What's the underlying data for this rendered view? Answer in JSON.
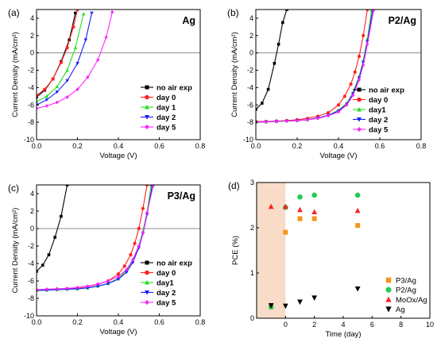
{
  "figure": {
    "panels_note": "",
    "colors": {
      "black": "#000000",
      "red": "#ff2020",
      "green": "#22dd22",
      "blue": "#1a1aff",
      "magenta": "#ff22ff",
      "orange": "#f7941d",
      "teal_green": "#22cc55",
      "shade": "#f8dcc8",
      "ref_line": "#8c8c8c"
    }
  },
  "chart_data": [
    {
      "type": "line",
      "panel_label": "(a)",
      "title": "Ag",
      "xlabel": "Voltage (V)",
      "ylabel": "Current Density (mA/cm²)",
      "xlim": [
        0.0,
        0.8
      ],
      "ylim": [
        -10,
        5
      ],
      "xticks": [
        "0.0",
        "0.2",
        "0.4",
        "0.6",
        "0.8"
      ],
      "yticks": [
        "-10",
        "-8",
        "-6",
        "-4",
        "-2",
        "0",
        "2",
        "4"
      ],
      "xticks_values": [
        0.0,
        0.2,
        0.4,
        0.6,
        0.8
      ],
      "yticks_values": [
        -10,
        -8,
        -6,
        -4,
        -2,
        0,
        2,
        4
      ],
      "reference_line_y": 0,
      "legend_position": "bottom-right",
      "series": [
        {
          "name": "no air exp",
          "color": "#000000",
          "marker": "square",
          "x": [
            0.0,
            0.04,
            0.08,
            0.12,
            0.16,
            0.19
          ],
          "y": [
            -5.1,
            -4.3,
            -3.0,
            -1.0,
            1.5,
            4.6
          ]
        },
        {
          "name": "day 0",
          "color": "#ff2020",
          "marker": "circle",
          "x": [
            0.0,
            0.04,
            0.08,
            0.12,
            0.15,
            0.18,
            0.2
          ],
          "y": [
            -4.9,
            -4.2,
            -3.0,
            -1.1,
            0.6,
            3.0,
            5.0
          ]
        },
        {
          "name": "day 1",
          "color": "#22dd22",
          "marker": "triangle-up",
          "x": [
            0.0,
            0.05,
            0.1,
            0.15,
            0.19,
            0.23
          ],
          "y": [
            -5.6,
            -5.0,
            -3.9,
            -2.0,
            0.6,
            4.5
          ]
        },
        {
          "name": "day 2",
          "color": "#1a1aff",
          "marker": "triangle-down",
          "x": [
            0.0,
            0.05,
            0.1,
            0.15,
            0.2,
            0.24,
            0.27
          ],
          "y": [
            -6.0,
            -5.4,
            -4.5,
            -3.2,
            -1.2,
            1.5,
            4.6
          ]
        },
        {
          "name": "day 5",
          "color": "#ff22ff",
          "marker": "diamond",
          "x": [
            0.0,
            0.05,
            0.1,
            0.15,
            0.2,
            0.25,
            0.3,
            0.34,
            0.37
          ],
          "y": [
            -6.4,
            -6.1,
            -5.7,
            -5.1,
            -4.2,
            -2.8,
            -0.8,
            1.8,
            4.7
          ]
        }
      ]
    },
    {
      "type": "line",
      "panel_label": "(b)",
      "title": "P2/Ag",
      "xlabel": "Voltage (V)",
      "ylabel": "Current Density (mA/cm²)",
      "xlim": [
        0.0,
        0.8
      ],
      "ylim": [
        -10,
        5
      ],
      "xticks": [
        "0.0",
        "0.2",
        "0.4",
        "0.6",
        "0.8"
      ],
      "yticks": [
        "-10",
        "-8",
        "-6",
        "-4",
        "-2",
        "0",
        "2",
        "4"
      ],
      "xticks_values": [
        0.0,
        0.2,
        0.4,
        0.6,
        0.8
      ],
      "yticks_values": [
        -10,
        -8,
        -6,
        -4,
        -2,
        0,
        2,
        4
      ],
      "reference_line_y": 0,
      "legend_position": "right",
      "series": [
        {
          "name": "no air exp",
          "color": "#000000",
          "marker": "square",
          "x": [
            0.0,
            0.03,
            0.06,
            0.09,
            0.11,
            0.13,
            0.15
          ],
          "y": [
            -6.5,
            -5.8,
            -4.2,
            -1.2,
            1.0,
            3.5,
            5.0
          ]
        },
        {
          "name": "day 0",
          "color": "#ff2020",
          "marker": "circle",
          "x": [
            0.0,
            0.05,
            0.1,
            0.15,
            0.2,
            0.25,
            0.3,
            0.35,
            0.4,
            0.43,
            0.46,
            0.48,
            0.5,
            0.52,
            0.54
          ],
          "y": [
            -7.9,
            -7.9,
            -7.85,
            -7.8,
            -7.7,
            -7.55,
            -7.3,
            -6.9,
            -6.0,
            -5.0,
            -3.6,
            -2.2,
            -0.4,
            2.0,
            5.0
          ]
        },
        {
          "name": "day1",
          "color": "#22dd22",
          "marker": "triangle-up",
          "x": [
            0.0,
            0.05,
            0.1,
            0.15,
            0.2,
            0.25,
            0.3,
            0.35,
            0.4,
            0.44,
            0.47,
            0.5,
            0.52,
            0.54,
            0.56
          ],
          "y": [
            -8.0,
            -7.95,
            -7.9,
            -7.85,
            -7.8,
            -7.7,
            -7.5,
            -7.2,
            -6.6,
            -5.8,
            -4.6,
            -2.7,
            -0.9,
            1.6,
            4.9
          ]
        },
        {
          "name": "day 2",
          "color": "#1a1aff",
          "marker": "triangle-down",
          "x": [
            0.0,
            0.05,
            0.1,
            0.15,
            0.2,
            0.25,
            0.3,
            0.35,
            0.4,
            0.44,
            0.47,
            0.5,
            0.52,
            0.54,
            0.565
          ],
          "y": [
            -8.0,
            -7.95,
            -7.9,
            -7.85,
            -7.8,
            -7.7,
            -7.5,
            -7.2,
            -6.7,
            -5.9,
            -4.7,
            -2.9,
            -1.1,
            1.3,
            4.9
          ]
        },
        {
          "name": "day 5",
          "color": "#ff22ff",
          "marker": "diamond",
          "x": [
            0.0,
            0.05,
            0.1,
            0.15,
            0.2,
            0.25,
            0.3,
            0.35,
            0.4,
            0.44,
            0.47,
            0.5,
            0.52,
            0.54,
            0.57
          ],
          "y": [
            -8.0,
            -7.95,
            -7.9,
            -7.85,
            -7.8,
            -7.7,
            -7.55,
            -7.25,
            -6.8,
            -6.0,
            -4.9,
            -3.1,
            -1.4,
            1.0,
            4.9
          ]
        }
      ]
    },
    {
      "type": "line",
      "panel_label": "(c)",
      "title": "P3/Ag",
      "xlabel": "Voltage (V)",
      "ylabel": "Current Density (mA/cm²)",
      "xlim": [
        0.0,
        0.8
      ],
      "ylim": [
        -10,
        5
      ],
      "xticks": [
        "0.0",
        "0.2",
        "0.4",
        "0.6",
        "0.8"
      ],
      "yticks": [
        "-10",
        "-8",
        "-6",
        "-4",
        "-2",
        "0",
        "2",
        "4"
      ],
      "xticks_values": [
        0.0,
        0.2,
        0.4,
        0.6,
        0.8
      ],
      "yticks_values": [
        -10,
        -8,
        -6,
        -4,
        -2,
        0,
        2,
        4
      ],
      "reference_line_y": 0,
      "legend_position": "bottom-right",
      "series": [
        {
          "name": "no air exp",
          "color": "#000000",
          "marker": "square",
          "x": [
            0.0,
            0.03,
            0.06,
            0.09,
            0.12,
            0.15
          ],
          "y": [
            -4.9,
            -4.2,
            -3.0,
            -1.0,
            1.4,
            5.0
          ]
        },
        {
          "name": "day 0",
          "color": "#ff2020",
          "marker": "circle",
          "x": [
            0.0,
            0.05,
            0.1,
            0.15,
            0.2,
            0.25,
            0.3,
            0.35,
            0.4,
            0.43,
            0.46,
            0.48,
            0.5,
            0.52,
            0.54
          ],
          "y": [
            -7.05,
            -7.0,
            -6.95,
            -6.9,
            -6.8,
            -6.65,
            -6.4,
            -6.0,
            -5.2,
            -4.3,
            -3.0,
            -1.7,
            0.0,
            2.3,
            5.0
          ]
        },
        {
          "name": "day1",
          "color": "#22dd22",
          "marker": "triangle-up",
          "x": [
            0.0,
            0.05,
            0.1,
            0.15,
            0.2,
            0.25,
            0.3,
            0.35,
            0.4,
            0.44,
            0.47,
            0.5,
            0.52,
            0.54,
            0.56
          ],
          "y": [
            -7.1,
            -7.05,
            -7.0,
            -6.95,
            -6.9,
            -6.8,
            -6.6,
            -6.3,
            -5.7,
            -4.8,
            -3.7,
            -1.9,
            -0.3,
            1.9,
            4.9
          ]
        },
        {
          "name": "day 2",
          "color": "#1a1aff",
          "marker": "triangle-down",
          "x": [
            0.0,
            0.05,
            0.1,
            0.15,
            0.2,
            0.25,
            0.3,
            0.35,
            0.4,
            0.44,
            0.47,
            0.5,
            0.52,
            0.54,
            0.565
          ],
          "y": [
            -7.1,
            -7.05,
            -7.0,
            -6.95,
            -6.9,
            -6.8,
            -6.6,
            -6.3,
            -5.8,
            -5.0,
            -3.9,
            -2.2,
            -0.6,
            1.6,
            4.9
          ]
        },
        {
          "name": "day 5",
          "color": "#ff22ff",
          "marker": "diamond",
          "x": [
            0.0,
            0.05,
            0.1,
            0.15,
            0.2,
            0.25,
            0.3,
            0.35,
            0.4,
            0.44,
            0.47,
            0.5,
            0.52,
            0.54,
            0.57
          ],
          "y": [
            -7.0,
            -6.95,
            -6.9,
            -6.85,
            -6.75,
            -6.6,
            -6.35,
            -6.0,
            -5.5,
            -4.7,
            -3.6,
            -2.0,
            -0.5,
            1.8,
            4.9
          ]
        }
      ]
    },
    {
      "type": "scatter",
      "panel_label": "(d)",
      "title": "",
      "xlabel": "Time (day)",
      "ylabel": "PCE (%)",
      "xlim": [
        -2,
        10
      ],
      "ylim": [
        0,
        3
      ],
      "xticks": [
        "0",
        "2",
        "4",
        "6",
        "8",
        "10"
      ],
      "yticks": [
        "0",
        "1",
        "2",
        "3"
      ],
      "xticks_values": [
        0,
        2,
        4,
        6,
        8,
        10
      ],
      "yticks_values": [
        0,
        1,
        2,
        3
      ],
      "shaded_region_x": [
        -2,
        0
      ],
      "legend_position": "bottom-right",
      "series": [
        {
          "name": "P3/Ag",
          "color": "#f7941d",
          "marker": "square",
          "x": [
            -1,
            0,
            1,
            2,
            5
          ],
          "y": [
            0.25,
            1.9,
            2.2,
            2.2,
            2.05
          ]
        },
        {
          "name": "P2/Ag",
          "color": "#22cc55",
          "marker": "circle",
          "x": [
            -1,
            0,
            1,
            2,
            5
          ],
          "y": [
            0.25,
            2.45,
            2.68,
            2.72,
            2.72
          ]
        },
        {
          "name": "MoOx/Ag",
          "color": "#ff2020",
          "marker": "triangle-up",
          "x": [
            -1,
            0,
            1,
            2,
            5
          ],
          "y": [
            2.47,
            2.47,
            2.4,
            2.35,
            2.38
          ]
        },
        {
          "name": "Ag",
          "color": "#000000",
          "marker": "triangle-down",
          "x": [
            -1,
            0,
            1,
            2,
            5
          ],
          "y": [
            0.28,
            0.27,
            0.36,
            0.45,
            0.65
          ]
        }
      ]
    }
  ]
}
